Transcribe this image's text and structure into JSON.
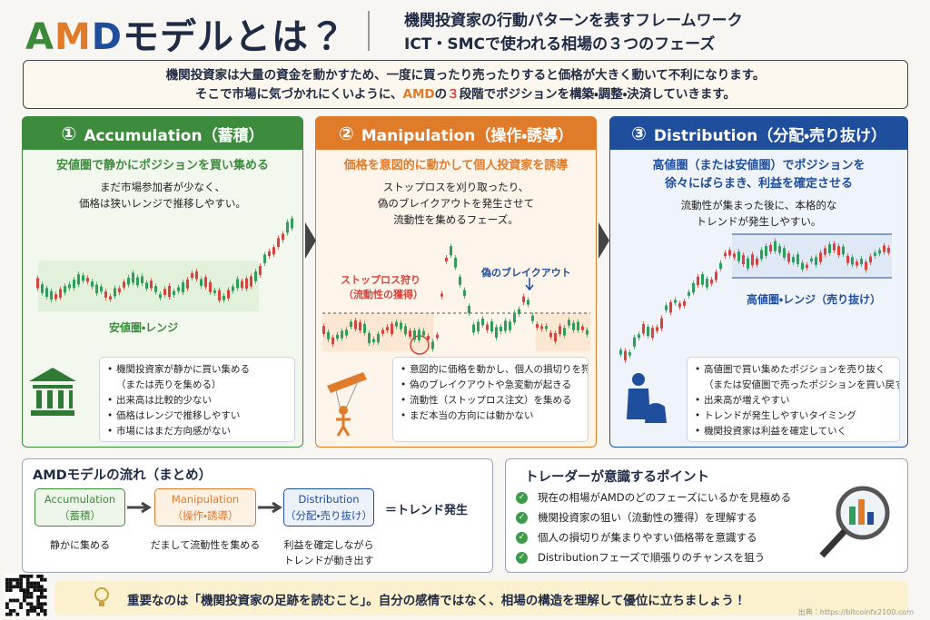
{
  "header": {
    "title_a": "A",
    "title_m": "M",
    "title_d": "D",
    "title_rest": "モデルとは？",
    "subtitle_1": "機関投資家の行動パターンを表すフレームワーク",
    "subtitle_2": "ICT・SMCで使われる相場の３つのフェーズ"
  },
  "intro": {
    "line_1": "機関投資家は大量の資金を動かすため、一度に買ったり売ったりすると価格が大きく動いて不利になります。",
    "line_2_pre": "そこで市場に気づかれにくいように、",
    "line_2_amd": "AMD",
    "line_2_mid": "の",
    "line_2_num": "３",
    "line_2_post": "段階でポジションを構築・調整・決済していきます。"
  },
  "phases": [
    {
      "number": "①",
      "title": "Accumulation（蓄積）",
      "headline": [
        "安値圏で静かにポジションを買い集める"
      ],
      "description": [
        "まだ市場参加者が少なく、",
        "価格は狭いレンジで推移しやすい。"
      ],
      "chart_labels": [
        "安値圏・レンジ"
      ],
      "bullets": [
        [
          "機関投資家が静かに買い集める",
          "（または売りを集める）"
        ],
        [
          "出来高は比較的少ない"
        ],
        [
          "価格はレンジで推移しやすい"
        ],
        [
          "市場にはまだ方向感がない"
        ]
      ]
    },
    {
      "number": "②",
      "title": "Manipulation（操作・誘導）",
      "headline": [
        "価格を意図的に動かして個人投資家を誘導"
      ],
      "description": [
        "ストップロスを刈り取ったり、",
        "偽のブレイクアウトを発生させて",
        "流動性を集めるフェーズ。"
      ],
      "chart_labels": [
        "ストップロス狩り",
        "（流動性の獲得）",
        "偽のブレイクアウト"
      ],
      "bullets": [
        [
          "意図的に価格を動かし、個人の損切りを狩る"
        ],
        [
          "偽のブレイクアウトや急変動が起きる"
        ],
        [
          "流動性（ストップロス注文）を集める"
        ],
        [
          "まだ本当の方向には動かない"
        ]
      ]
    },
    {
      "number": "③",
      "title": "Distribution（分配・売り抜け）",
      "headline": [
        "高値圏（または安値圏）でポジションを",
        "徐々にばらまき、利益を確定させる"
      ],
      "description": [
        "流動性が集まった後に、本格的な",
        "トレンドが発生しやすい。"
      ],
      "chart_labels": [
        "高値圏・レンジ（売り抜け）"
      ],
      "bullets": [
        [
          "高値圏で買い集めたポジションを売り抜く",
          "（または安値圏で売ったポジションを買い戻す）"
        ],
        [
          "出来高が増えやすい"
        ],
        [
          "トレンドが発生しやすいタイミング"
        ],
        [
          "機関投資家は利益を確定していく"
        ]
      ]
    }
  ],
  "flow": {
    "title": "AMDモデルの流れ（まとめ）",
    "steps": [
      {
        "name": "Accumulation",
        "sub": "（蓄積）",
        "caption": [
          "静かに集める"
        ]
      },
      {
        "name": "Manipulation",
        "sub": "（操作・誘導）",
        "caption": [
          "だまして流動性を集める"
        ]
      },
      {
        "name": "Distribution",
        "sub": "（分配・売り抜け）",
        "caption": [
          "利益を確定しながら",
          "トレンドが動き出す"
        ]
      }
    ],
    "result": "＝トレンド発生"
  },
  "points": {
    "title": "トレーダーが意識するポイント",
    "items": [
      "現在の相場がAMDのどのフェーズにいるかを見極める",
      "機関投資家の狙い（流動性の獲得）を理解する",
      "個人の損切りが集まりやすい価格帯を意識する",
      "Distributionフェーズで順張りのチャンスを狙う"
    ]
  },
  "footer": {
    "message": "重要なのは「機関投資家の足跡を読むこと」。自分の感情ではなく、相場の構造を理解して優位に立ちましょう！",
    "credit": "出典：https://bitcoinfx2100.com"
  }
}
